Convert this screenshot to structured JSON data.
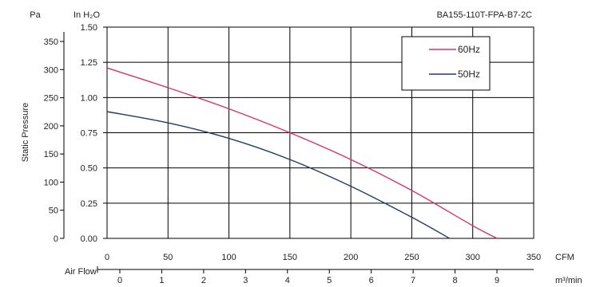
{
  "header": {
    "pa_label": "Pa",
    "inh2o_label": "In H₂O",
    "model": "BA155-110T-FPA-B7-2C"
  },
  "chart_data": {
    "type": "line",
    "ylabel": "Static Pressure",
    "xlabel": "Air Flow",
    "x_unit_cfm": "CFM",
    "x_unit_m3min": "m³/min",
    "xlim": [
      0,
      350
    ],
    "ylim_inh2o": [
      0,
      1.5
    ],
    "grid": true,
    "legend_position": "top-right",
    "x_ticks_cfm": [
      "0",
      "50",
      "100",
      "150",
      "200",
      "250",
      "300",
      "350"
    ],
    "x_ticks_m3min": [
      "0",
      "1",
      "2",
      "3",
      "4",
      "5",
      "6",
      "7",
      "8",
      "9"
    ],
    "y_ticks_inh2o": [
      "0.00",
      "0.25",
      "0.50",
      "0.75",
      "1.00",
      "1.25",
      "1.50"
    ],
    "y_ticks_pa": [
      "0",
      "50",
      "100",
      "150",
      "200",
      "250",
      "300",
      "350"
    ],
    "series": [
      {
        "name": "60Hz",
        "color": "#d6336c",
        "points": [
          [
            0,
            1.21
          ],
          [
            50,
            1.07
          ],
          [
            100,
            0.92
          ],
          [
            150,
            0.75
          ],
          [
            200,
            0.56
          ],
          [
            250,
            0.34
          ],
          [
            300,
            0.09
          ],
          [
            320,
            0.0
          ]
        ]
      },
      {
        "name": "50Hz",
        "color": "#1f3b6e",
        "points": [
          [
            0,
            0.9
          ],
          [
            50,
            0.82
          ],
          [
            100,
            0.71
          ],
          [
            150,
            0.56
          ],
          [
            200,
            0.37
          ],
          [
            250,
            0.15
          ],
          [
            281,
            0.0
          ]
        ]
      }
    ]
  }
}
